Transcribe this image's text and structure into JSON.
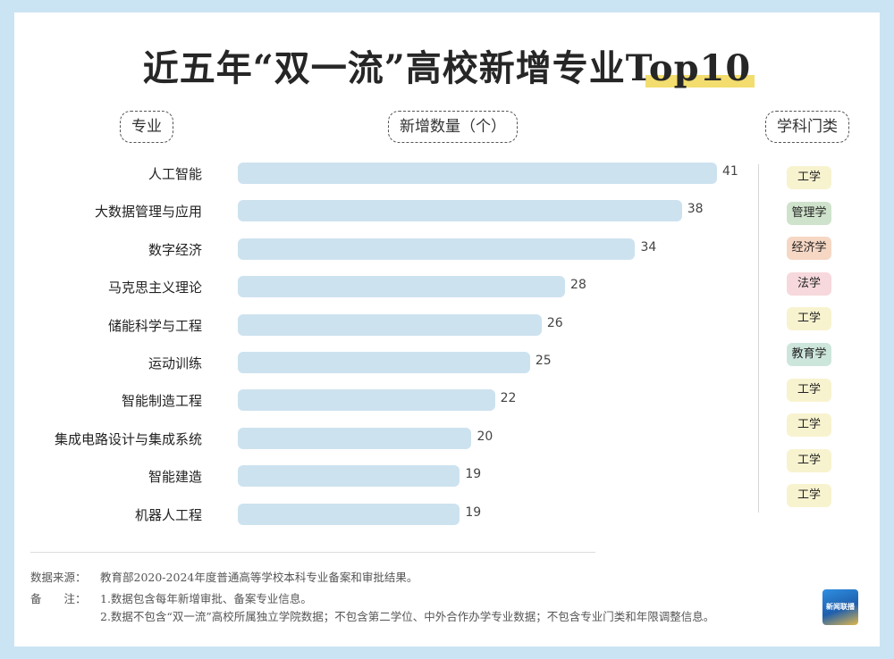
{
  "title": "近五年“双一流”高校新增专业Top10",
  "headers": {
    "major": "专业",
    "count": "新增数量（个）",
    "discipline": "学科门类"
  },
  "chart_data": {
    "type": "bar",
    "orientation": "horizontal",
    "categories": [
      "人工智能",
      "大数据管理与应用",
      "数字经济",
      "马克思主义理论",
      "储能科学与工程",
      "运动训练",
      "智能制造工程",
      "集成电路设计与集成系统",
      "智能建造",
      "机器人工程"
    ],
    "values": [
      41,
      38,
      34,
      28,
      26,
      25,
      22,
      20,
      19,
      19
    ],
    "xlim": [
      0,
      41
    ],
    "grid": false,
    "bar_color": "#cde2ef"
  },
  "disciplines": [
    {
      "label": "工学",
      "color": "#f8f3cf"
    },
    {
      "label": "管理学",
      "color": "#cfe3cc"
    },
    {
      "label": "经济学",
      "color": "#f6d7c4"
    },
    {
      "label": "法学",
      "color": "#f7d8dc"
    },
    {
      "label": "工学",
      "color": "#f8f3cf"
    },
    {
      "label": "教育学",
      "color": "#cde6dc"
    },
    {
      "label": "工学",
      "color": "#f8f3cf"
    },
    {
      "label": "工学",
      "color": "#f8f3cf"
    },
    {
      "label": "工学",
      "color": "#f8f3cf"
    },
    {
      "label": "工学",
      "color": "#f8f3cf"
    }
  ],
  "footer": {
    "source_label": "数据来源：",
    "source_text": "教育部2020-2024年度普通高等学校本科专业备案和审批结果。",
    "notes_label": "备　　注：",
    "note1": "1.数据包含每年新增审批、备案专业信息。",
    "note2": "2.数据不包含“双一流”高校所属独立学院数据；不包含第二学位、中外合作办学专业数据；不包含专业门类和年限调整信息。"
  },
  "logo_text": "新闻联播"
}
